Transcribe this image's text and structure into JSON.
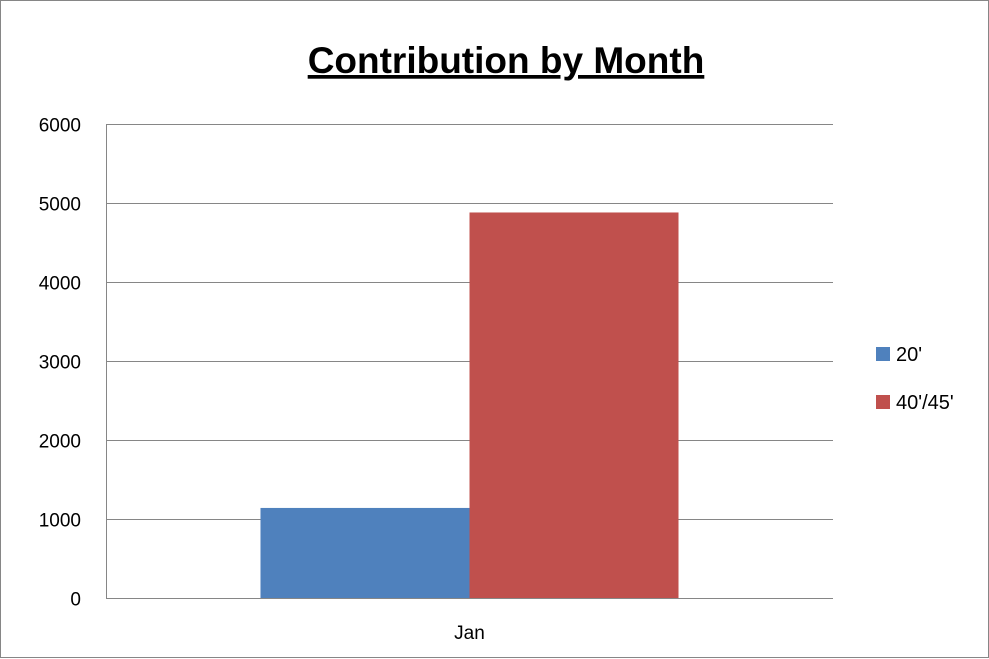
{
  "chart_data": {
    "type": "bar",
    "title": "Contribution by Month",
    "xlabel": "",
    "ylabel": "",
    "categories": [
      "Jan"
    ],
    "series": [
      {
        "name": "20'",
        "values": [
          1140
        ],
        "color": "#4f81bd"
      },
      {
        "name": "40'/45'",
        "values": [
          4880
        ],
        "color": "#c0504d"
      }
    ],
    "ylim": [
      0,
      6000
    ],
    "yticks": [
      0,
      1000,
      2000,
      3000,
      4000,
      5000,
      6000
    ],
    "ytick_labels": [
      "0",
      "1000",
      "2000",
      "3000",
      "4000",
      "5000",
      "6000"
    ],
    "grid": true,
    "legend_position": "right"
  }
}
